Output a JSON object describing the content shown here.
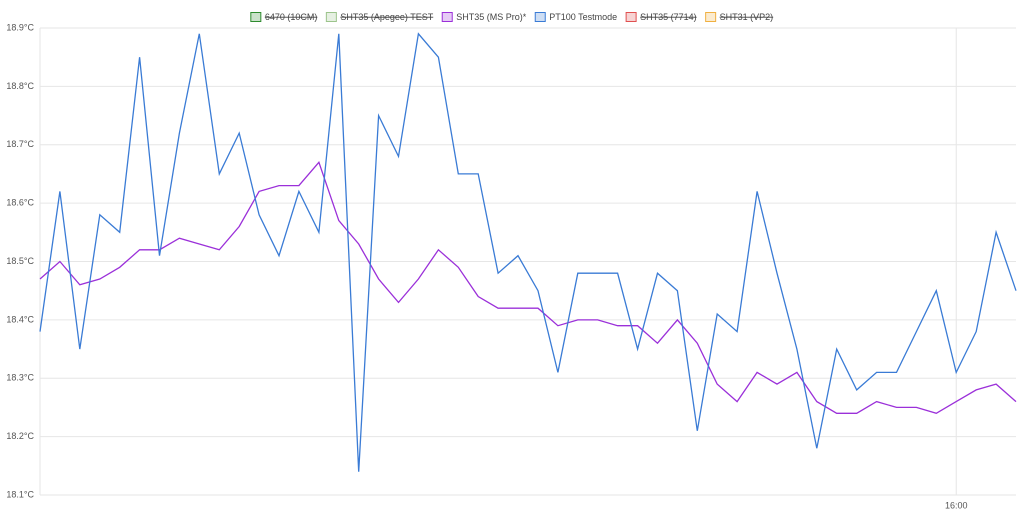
{
  "chart_data": {
    "type": "line",
    "categories": [
      null,
      null,
      null,
      null,
      null,
      null,
      null,
      null,
      null,
      null,
      null,
      null,
      null,
      null,
      null,
      null,
      null,
      null,
      null,
      null,
      null,
      null,
      null,
      null,
      null,
      null,
      null,
      null,
      null,
      null,
      null,
      null,
      null,
      null,
      null,
      null,
      null,
      null,
      null,
      null,
      null,
      null,
      null,
      null,
      null,
      null,
      "16:00",
      null,
      null,
      null
    ],
    "series": [
      {
        "name": "6470 (10CM)",
        "color": "#2e8b2e",
        "hidden": true
      },
      {
        "name": "SHT35 (Apegee) TEST",
        "color": "#9cc48c",
        "hidden": true
      },
      {
        "name": "SHT35 (MS Pro)*",
        "color": "#9b30d9",
        "values": [
          18.47,
          18.5,
          18.46,
          18.47,
          18.49,
          18.52,
          18.52,
          18.54,
          18.53,
          18.52,
          18.56,
          18.62,
          18.63,
          18.63,
          18.67,
          18.57,
          18.53,
          18.47,
          18.43,
          18.47,
          18.52,
          18.49,
          18.44,
          18.42,
          18.42,
          18.42,
          18.39,
          18.4,
          18.4,
          18.39,
          18.39,
          18.36,
          18.4,
          18.36,
          18.29,
          18.26,
          18.31,
          18.29,
          18.31,
          18.26,
          18.24,
          18.24,
          18.26,
          18.25,
          18.25,
          18.24,
          18.26,
          18.28,
          18.29,
          18.26
        ]
      },
      {
        "name": "PT100 Testmode",
        "color": "#3a7bd5",
        "values": [
          18.38,
          18.62,
          18.35,
          18.58,
          18.55,
          18.85,
          18.51,
          18.72,
          18.89,
          18.65,
          18.72,
          18.58,
          18.51,
          18.62,
          18.55,
          18.89,
          18.14,
          18.75,
          18.68,
          18.89,
          18.85,
          18.65,
          18.65,
          18.48,
          18.51,
          18.45,
          18.31,
          18.48,
          18.48,
          18.48,
          18.35,
          18.48,
          18.45,
          18.21,
          18.41,
          18.38,
          18.62,
          18.48,
          18.35,
          18.18,
          18.35,
          18.28,
          18.31,
          18.31,
          18.38,
          18.45,
          18.31,
          18.38,
          18.55,
          18.45
        ]
      },
      {
        "name": "SHT35 (7714)",
        "color": "#e05050",
        "hidden": true
      },
      {
        "name": "SHT31 (VP2)",
        "color": "#f0b040",
        "hidden": true
      }
    ],
    "ylim": [
      18.1,
      18.9
    ],
    "yticks": [
      {
        "value": 18.1,
        "label": "18.1°C"
      },
      {
        "value": 18.2,
        "label": "18.2°C"
      },
      {
        "value": 18.3,
        "label": "18.3°C"
      },
      {
        "value": 18.4,
        "label": "18.4°C"
      },
      {
        "value": 18.5,
        "label": "18.5°C"
      },
      {
        "value": 18.6,
        "label": "18.6°C"
      },
      {
        "value": 18.7,
        "label": "18.7°C"
      },
      {
        "value": 18.8,
        "label": "18.8°C"
      },
      {
        "value": 18.9,
        "label": "18.9°C"
      }
    ],
    "grid": true,
    "legend": "top"
  }
}
